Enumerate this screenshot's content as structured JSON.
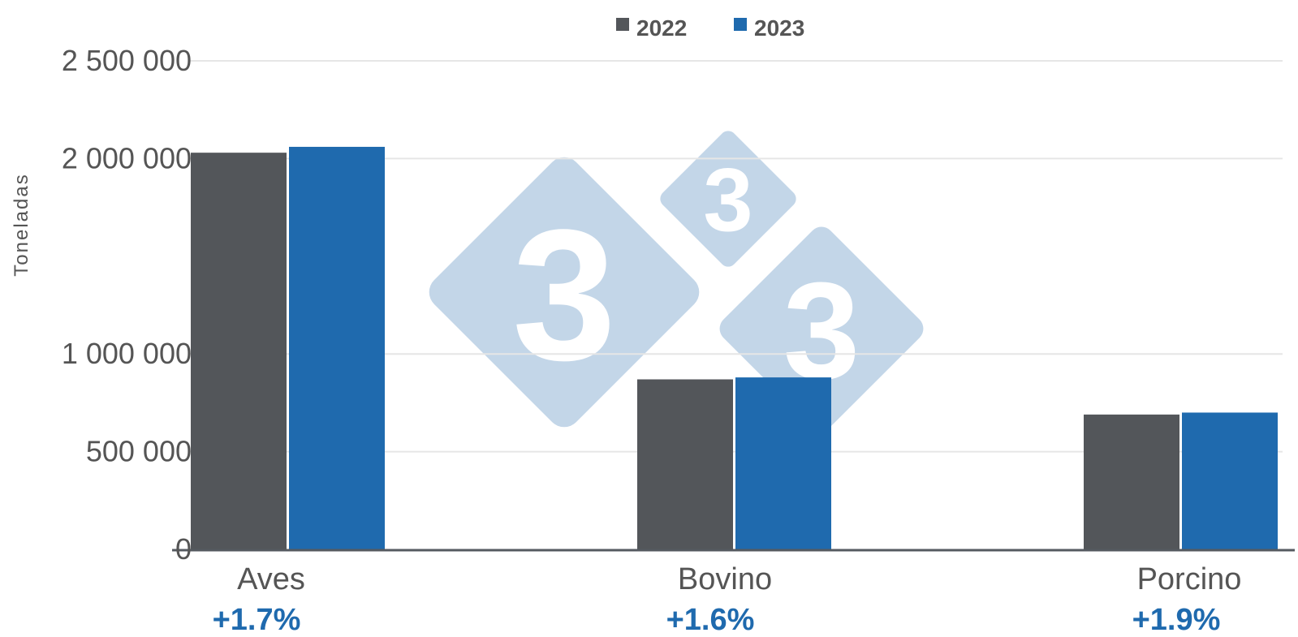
{
  "chart_data": {
    "type": "bar",
    "ylabel": "Toneladas",
    "ylim": [
      0,
      2500000
    ],
    "yticks": [
      {
        "value": 0,
        "label": "0"
      },
      {
        "value": 500000,
        "label": "500 000"
      },
      {
        "value": 1000000,
        "label": "1 000 000"
      },
      {
        "value": 2000000,
        "label": "2 000 000"
      },
      {
        "value": 2500000,
        "label": "2 500 000"
      }
    ],
    "categories": [
      "Aves",
      "Bovino",
      "Porcino"
    ],
    "changes": [
      "+1.7%",
      "+1.6%",
      "+1.9%"
    ],
    "series": [
      {
        "name": "2022",
        "color": "#53565a",
        "values": [
          2030000,
          870000,
          690000
        ]
      },
      {
        "name": "2023",
        "color": "#1f6aae",
        "values": [
          2060000,
          880000,
          700000
        ]
      }
    ],
    "legend_position": "top-center",
    "grid": true,
    "watermark": {
      "digit": "3",
      "color": "#c3d6e8"
    },
    "change_color": "#1f6aae"
  }
}
